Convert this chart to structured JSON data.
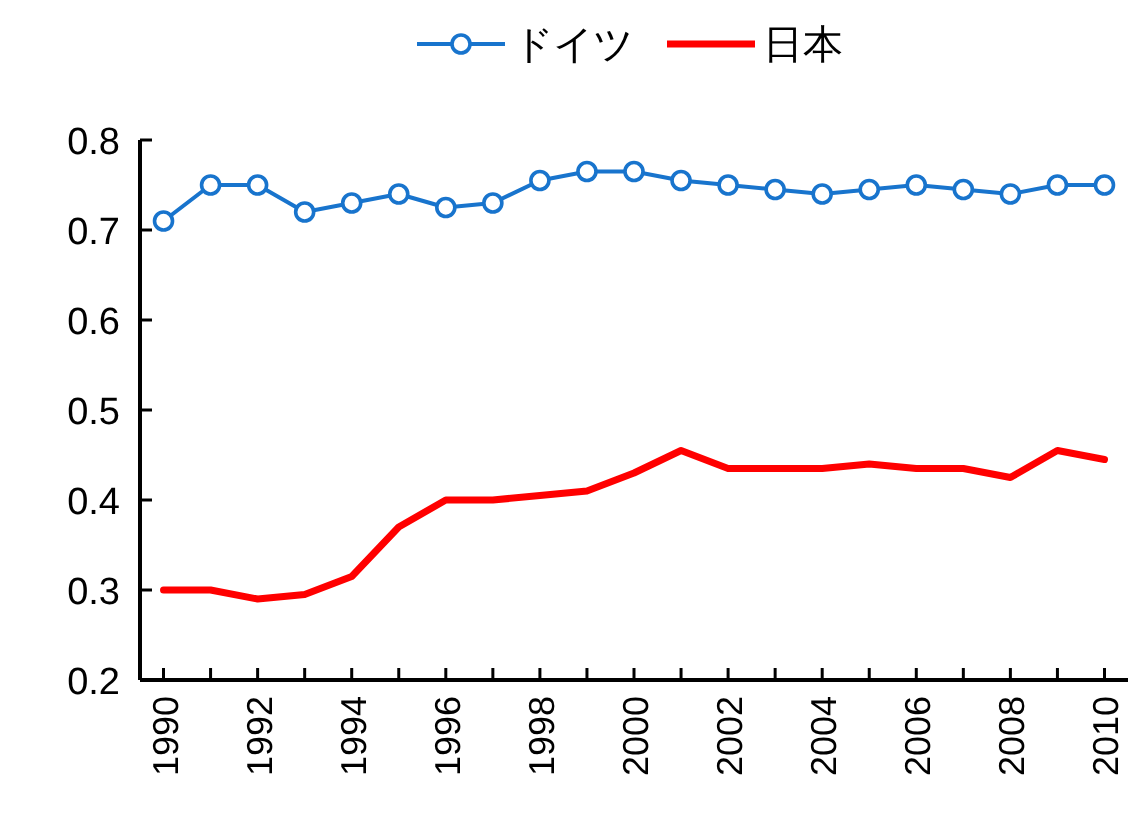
{
  "chart_data": {
    "type": "line",
    "x": [
      1990,
      1991,
      1992,
      1993,
      1994,
      1995,
      1996,
      1997,
      1998,
      1999,
      2000,
      2001,
      2002,
      2003,
      2004,
      2005,
      2006,
      2007,
      2008,
      2009,
      2010
    ],
    "series": [
      {
        "name": "ドイツ",
        "color": "#1874cd",
        "marker": "circle",
        "values": [
          0.71,
          0.75,
          0.75,
          0.72,
          0.73,
          0.74,
          0.725,
          0.73,
          0.755,
          0.765,
          0.765,
          0.755,
          0.75,
          0.745,
          0.74,
          0.745,
          0.75,
          0.745,
          0.74,
          0.75,
          0.75
        ]
      },
      {
        "name": "日本",
        "color": "#ff0000",
        "marker": "none",
        "values": [
          0.3,
          0.3,
          0.29,
          0.295,
          0.315,
          0.37,
          0.4,
          0.4,
          0.405,
          0.41,
          0.43,
          0.455,
          0.435,
          0.435,
          0.435,
          0.44,
          0.435,
          0.435,
          0.425,
          0.455,
          0.445
        ]
      }
    ],
    "xlim": [
      1989.5,
      2010.5
    ],
    "xticks": [
      {
        "value": 1990,
        "label": "1990"
      },
      {
        "value": 1991,
        "label": null
      },
      {
        "value": 1992,
        "label": "1992"
      },
      {
        "value": 1993,
        "label": null
      },
      {
        "value": 1994,
        "label": "1994"
      },
      {
        "value": 1995,
        "label": null
      },
      {
        "value": 1996,
        "label": "1996"
      },
      {
        "value": 1997,
        "label": null
      },
      {
        "value": 1998,
        "label": "1998"
      },
      {
        "value": 1999,
        "label": null
      },
      {
        "value": 2000,
        "label": "2000"
      },
      {
        "value": 2001,
        "label": null
      },
      {
        "value": 2002,
        "label": "2002"
      },
      {
        "value": 2003,
        "label": null
      },
      {
        "value": 2004,
        "label": "2004"
      },
      {
        "value": 2005,
        "label": null
      },
      {
        "value": 2006,
        "label": "2006"
      },
      {
        "value": 2007,
        "label": null
      },
      {
        "value": 2008,
        "label": "2008"
      },
      {
        "value": 2009,
        "label": null
      },
      {
        "value": 2010,
        "label": "2010"
      }
    ],
    "ylim": [
      0.2,
      0.8
    ],
    "yticks": [
      0.2,
      0.3,
      0.4,
      0.5,
      0.6,
      0.7,
      0.8
    ],
    "grid": false,
    "legend": "top"
  }
}
